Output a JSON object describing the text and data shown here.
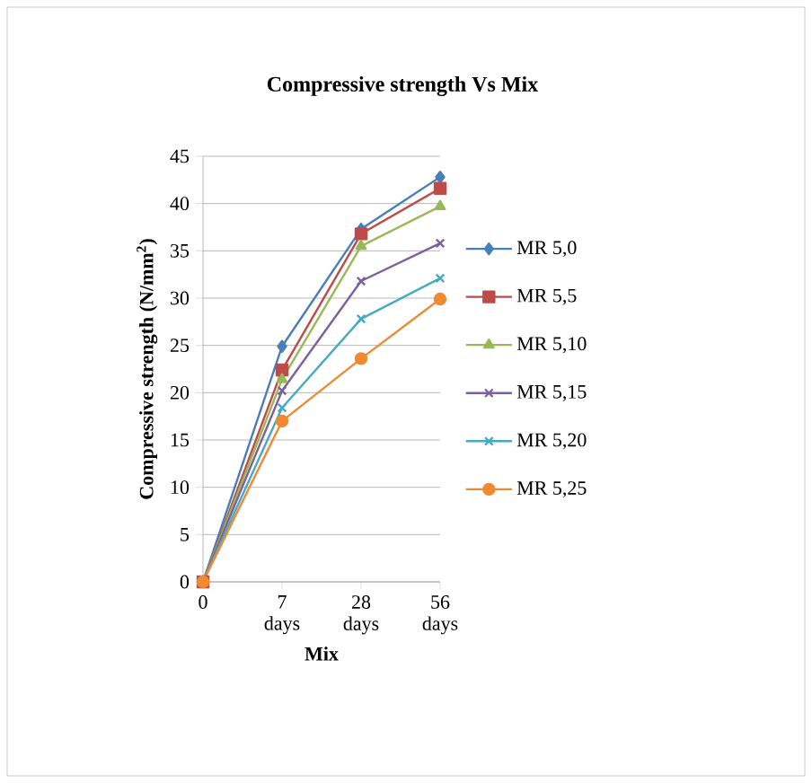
{
  "chart_data": {
    "type": "line",
    "title": "Compressive strength Vs Mix",
    "xlabel": "Mix",
    "ylabel": "Compressive strength (N/mm$^{2}$)",
    "categories": [
      "0",
      "7 days",
      "28 days",
      "56 days"
    ],
    "series": [
      {
        "name": "MR 5,0",
        "color": "#4a7ebb",
        "marker": "diamond",
        "values": [
          0,
          24.9,
          37.3,
          42.8
        ]
      },
      {
        "name": "MR 5,5",
        "color": "#be4b48",
        "marker": "square",
        "values": [
          0,
          22.4,
          36.8,
          41.6
        ]
      },
      {
        "name": "MR 5,10",
        "color": "#98b954",
        "marker": "triangle",
        "values": [
          0,
          21.4,
          35.5,
          39.7
        ]
      },
      {
        "name": "MR 5,15",
        "color": "#7d60a0",
        "marker": "cross",
        "values": [
          0,
          20.2,
          31.8,
          35.8
        ]
      },
      {
        "name": "MR 5,20",
        "color": "#46aac5",
        "marker": "cross",
        "values": [
          0,
          18.4,
          27.8,
          32.1
        ]
      },
      {
        "name": "MR 5,25",
        "color": "#f08a31",
        "marker": "circle",
        "values": [
          0,
          17.0,
          23.6,
          29.9
        ]
      }
    ],
    "ylim": [
      0,
      45
    ],
    "yticks": [
      0,
      5,
      10,
      15,
      20,
      25,
      30,
      35,
      40,
      45
    ],
    "grid": "y",
    "legend": "right",
    "line_style": "solid"
  }
}
